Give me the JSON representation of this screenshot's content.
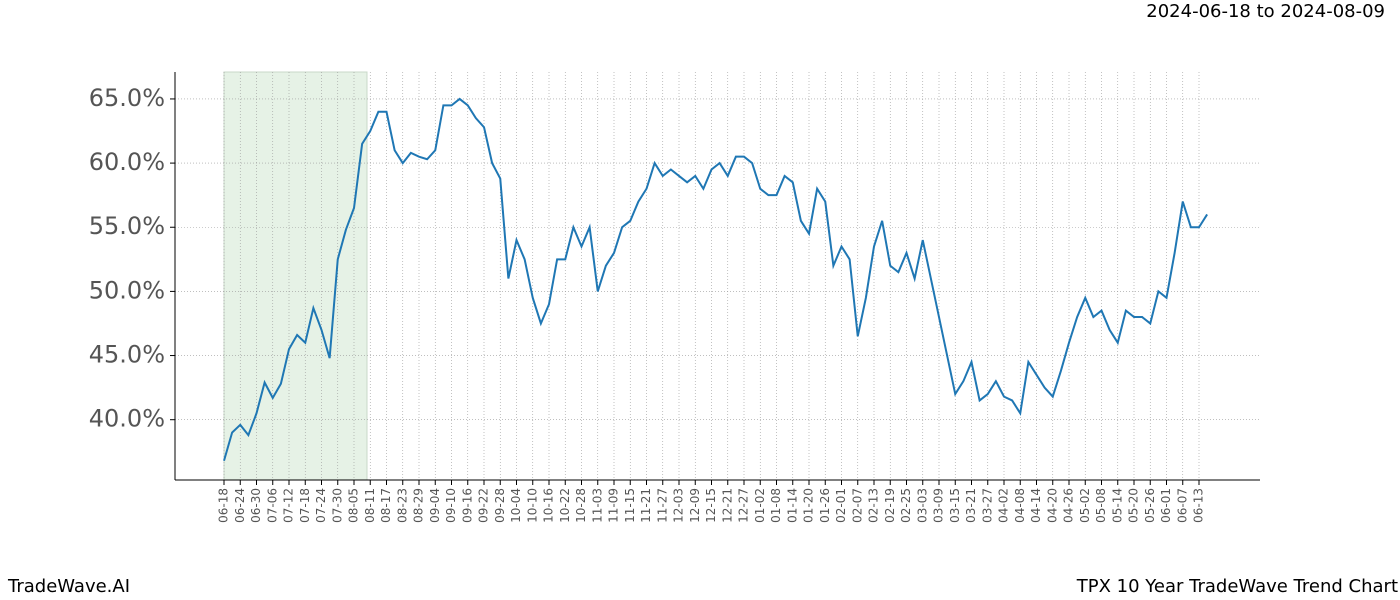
{
  "header": "2024-06-18 to 2024-08-09",
  "footer_left": "TradeWave.AI",
  "footer_right": "TPX 10 Year TradeWave Trend Chart",
  "chart_data": {
    "type": "line",
    "color": "#1f77b4",
    "grid": true,
    "categories": [
      "06-18",
      null,
      "06-24",
      null,
      "06-30",
      null,
      "07-06",
      null,
      "07-12",
      null,
      "07-18",
      null,
      "07-24",
      null,
      "07-30",
      null,
      "08-05",
      null,
      "08-11",
      null,
      "08-17",
      null,
      "08-23",
      null,
      "08-29",
      null,
      "09-04",
      null,
      "09-10",
      null,
      "09-16",
      null,
      "09-22",
      null,
      "09-28",
      null,
      "10-04",
      null,
      "10-10",
      null,
      "10-16",
      null,
      "10-22",
      null,
      "10-28",
      null,
      "11-03",
      null,
      "11-09",
      null,
      "11-15",
      null,
      "11-21",
      null,
      "11-27",
      null,
      "12-03",
      null,
      "12-09",
      null,
      "12-15",
      null,
      "12-21",
      null,
      "12-27",
      null,
      "01-02",
      null,
      "01-08",
      null,
      "01-14",
      null,
      "01-20",
      null,
      "01-26",
      null,
      "02-01",
      null,
      "02-07",
      null,
      "02-13",
      null,
      "02-19",
      null,
      "02-25",
      null,
      "03-03",
      null,
      "03-09",
      null,
      "03-15",
      null,
      "03-21",
      null,
      "03-27",
      null,
      "04-02",
      null,
      "04-08",
      null,
      "04-14",
      null,
      "04-20",
      null,
      "04-26",
      null,
      "05-02",
      null,
      "05-08",
      null,
      "05-14",
      null,
      "05-20",
      null,
      "05-26",
      null,
      "06-01",
      null,
      "06-07",
      null,
      "06-13",
      null
    ],
    "values": [
      36.8,
      39.0,
      39.6,
      38.8,
      40.5,
      42.9,
      41.7,
      42.8,
      45.5,
      46.6,
      46.0,
      48.7,
      47.0,
      44.8,
      52.5,
      54.8,
      56.5,
      61.5,
      62.5,
      64.0,
      64.0,
      61.0,
      60.0,
      60.8,
      60.5,
      60.3,
      61.0,
      64.5,
      64.5,
      65.0,
      64.5,
      63.5,
      62.8,
      60.0,
      58.8,
      51.0,
      54.0,
      52.5,
      49.5,
      47.5,
      49.0,
      52.5,
      52.5,
      55.0,
      53.5,
      55.0,
      50.0,
      52.0,
      53.0,
      55.0,
      55.5,
      57.0,
      58.0,
      60.0,
      59.0,
      59.5,
      59.0,
      58.5,
      59.0,
      58.0,
      59.5,
      60.0,
      59.0,
      60.5,
      60.5,
      60.0,
      58.0,
      57.5,
      57.5,
      59.0,
      58.5,
      55.5,
      54.5,
      58.0,
      57.0,
      52.0,
      53.5,
      52.5,
      46.5,
      49.5,
      53.5,
      55.5,
      52.0,
      51.5,
      53.0,
      51.0,
      54.0,
      51.0,
      48.0,
      45.0,
      42.0,
      43.0,
      44.5,
      41.5,
      42.0,
      43.0,
      41.8,
      41.5,
      40.5,
      44.5,
      43.5,
      42.5,
      41.8,
      43.8,
      46.0,
      48.0,
      49.5,
      48.0,
      48.5,
      47.0,
      46.0,
      48.5,
      48.0,
      48.0,
      47.5,
      50.0,
      49.5,
      53.0,
      57.0,
      55.0,
      55.0,
      56.0
    ],
    "ylim": [
      35.3,
      67.1
    ],
    "yticks": [
      {
        "value": 40,
        "label": "40.0%"
      },
      {
        "value": 45,
        "label": "45.0%"
      },
      {
        "value": 50,
        "label": "50.0%"
      },
      {
        "value": 55,
        "label": "55.0%"
      },
      {
        "value": 60,
        "label": "60.0%"
      },
      {
        "value": 65,
        "label": "65.0%"
      }
    ]
  }
}
